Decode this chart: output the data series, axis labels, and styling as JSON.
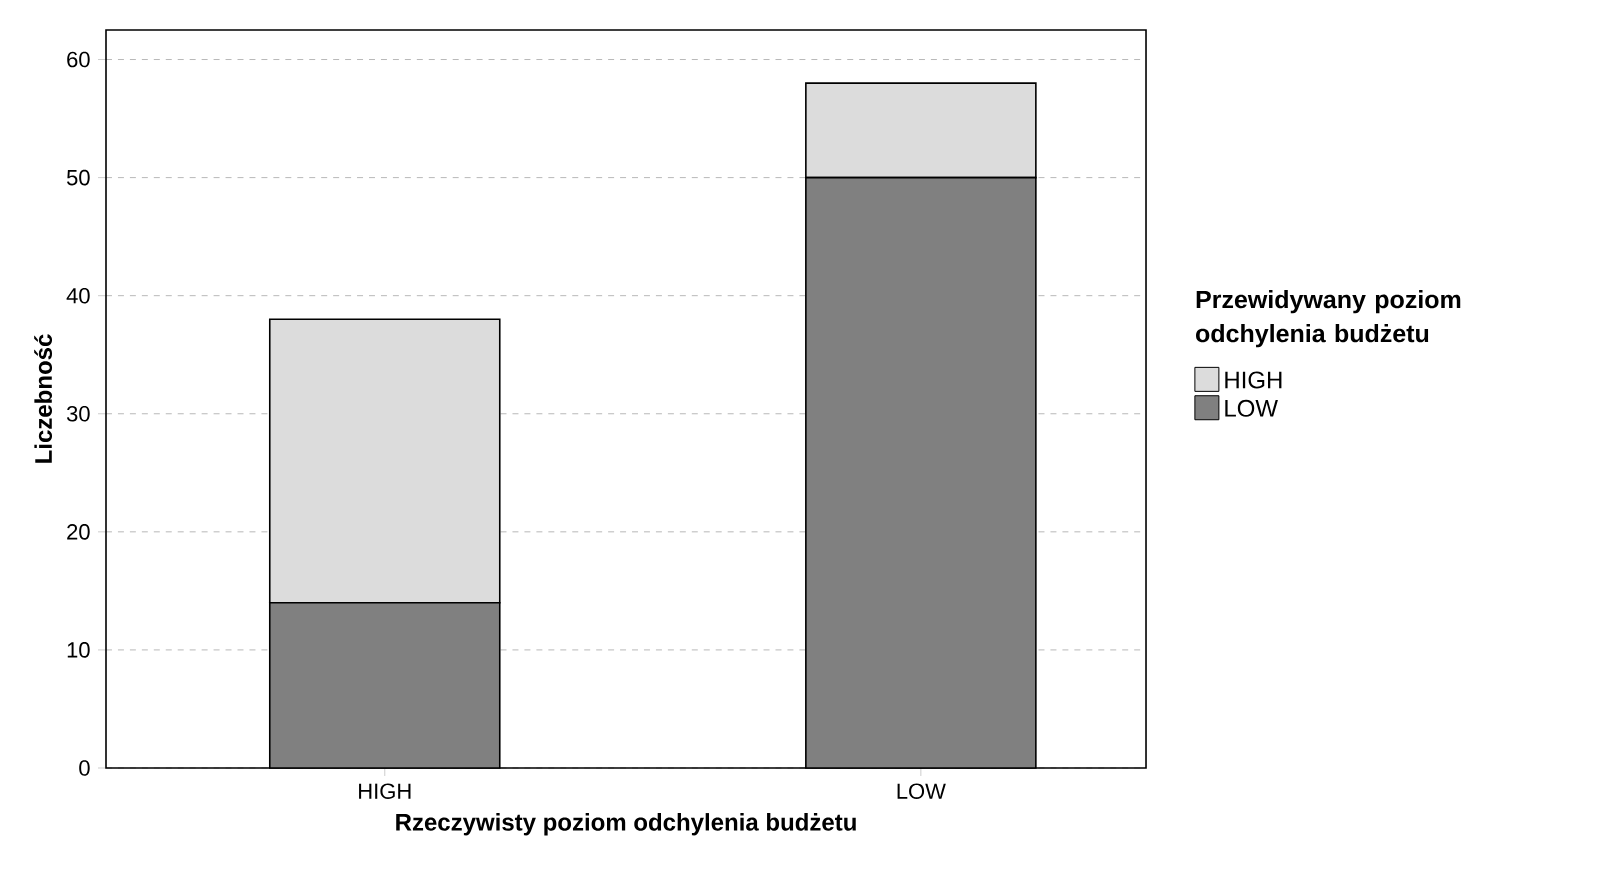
{
  "chart_data": {
    "type": "bar",
    "stacked": true,
    "xlabel": "Rzeczywisty poziom odchylenia budżetu",
    "ylabel": "Liczebność",
    "legend_title": "Przewidywany poziom odchylenia budżetu",
    "categories": [
      "HIGH",
      "LOW"
    ],
    "series": [
      {
        "name": "LOW",
        "color": "#808080",
        "values": [
          14,
          50
        ]
      },
      {
        "name": "HIGH",
        "color": "#dcdcdc",
        "values": [
          24,
          8
        ]
      }
    ],
    "ylim": [
      0,
      62.5
    ],
    "yticks": [
      0,
      10,
      20,
      30,
      40,
      50,
      60
    ],
    "grid": "y",
    "legend": "right"
  }
}
